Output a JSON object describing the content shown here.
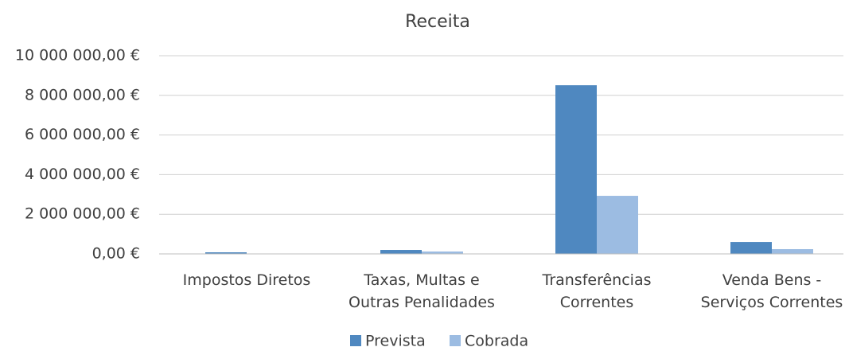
{
  "chart_data": {
    "type": "bar",
    "title": "Receita",
    "categories": [
      "Impostos Diretos",
      "Taxas, Multas e\nOutras Penalidades",
      "Transferências\nCorrentes",
      "Venda Bens -\nServiços Correntes"
    ],
    "series": [
      {
        "name": "Prevista",
        "color": "#4f88c0",
        "values": [
          80000,
          200000,
          8510000,
          600000
        ]
      },
      {
        "name": "Cobrada",
        "color": "#9cbce2",
        "values": [
          10000,
          120000,
          2930000,
          240000
        ]
      }
    ],
    "ylim": [
      0,
      10000000
    ],
    "yticks": [
      {
        "value": 0,
        "label": "0,00 €"
      },
      {
        "value": 2000000,
        "label": "2 000 000,00 €"
      },
      {
        "value": 4000000,
        "label": "4 000 000,00 €"
      },
      {
        "value": 6000000,
        "label": "6 000 000,00 €"
      },
      {
        "value": 8000000,
        "label": "8 000 000,00 €"
      },
      {
        "value": 10000000,
        "label": "10 000 000,00 €"
      }
    ],
    "grid": true,
    "legend": "bottom"
  }
}
